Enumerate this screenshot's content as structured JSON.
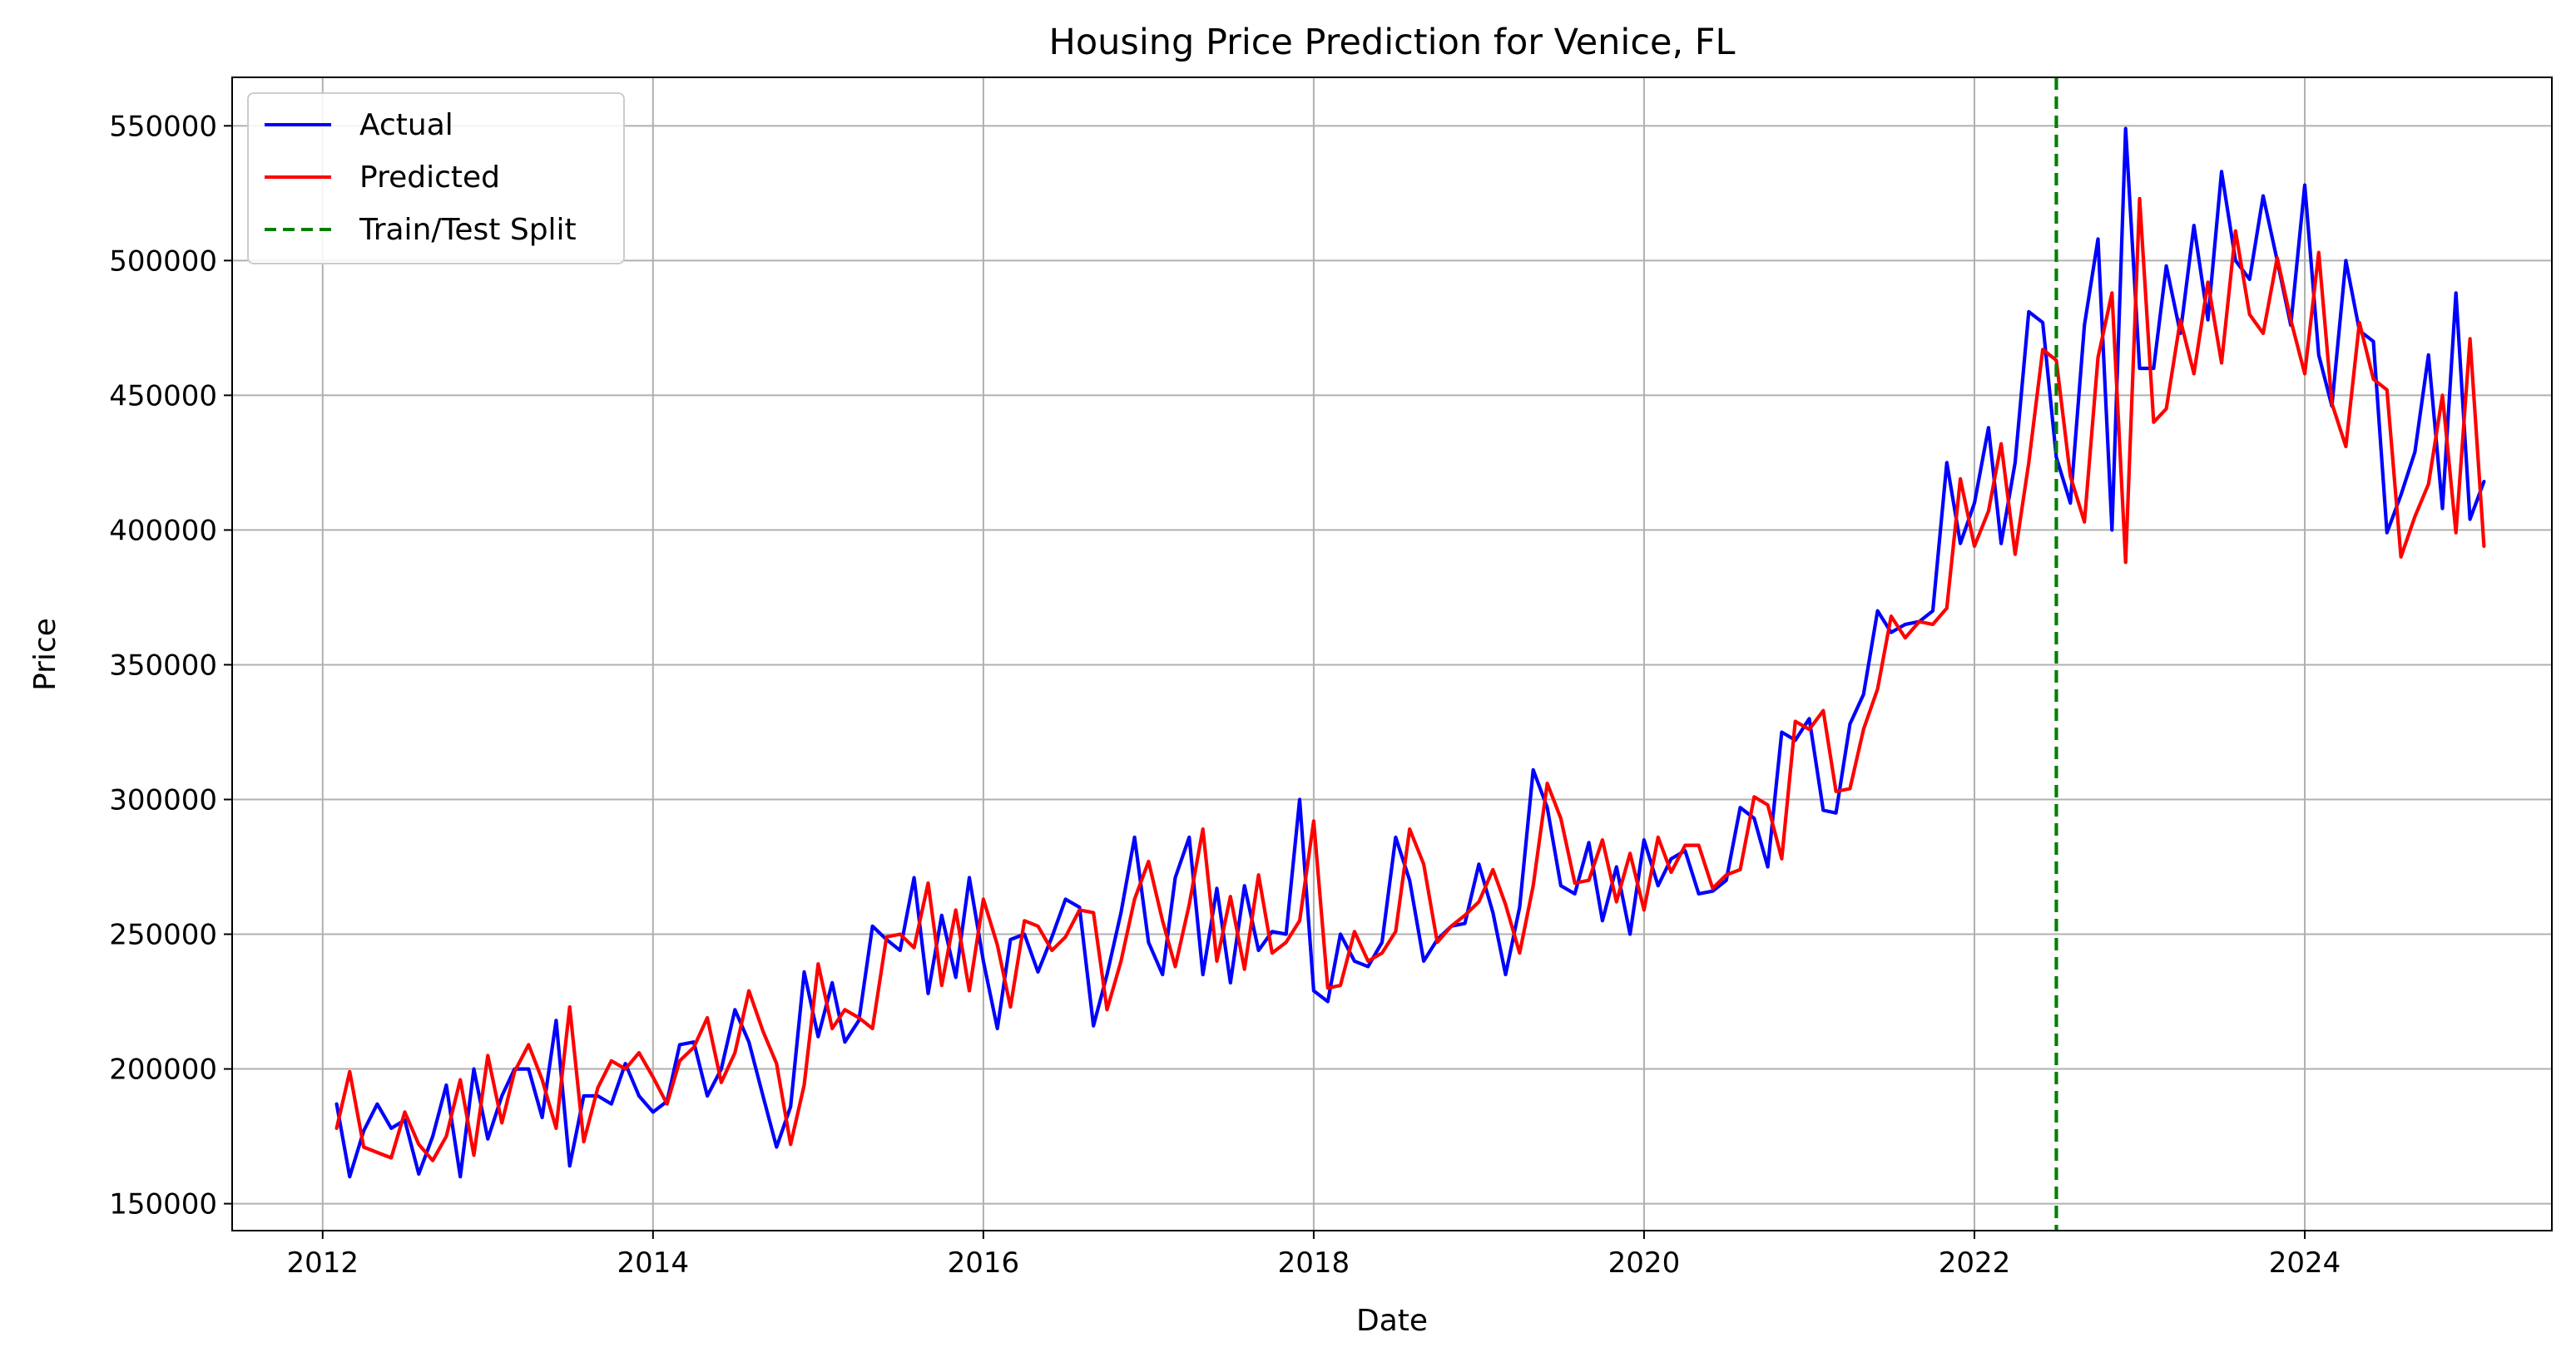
{
  "chart_data": {
    "type": "line",
    "title": "Housing Price Prediction for Venice, FL",
    "xlabel": "Date",
    "ylabel": "Price",
    "x_range": [
      "2011-06-15",
      "2025-07-01"
    ],
    "xticks": [
      "2012",
      "2014",
      "2016",
      "2018",
      "2020",
      "2022",
      "2024"
    ],
    "ylim": [
      140000,
      568000
    ],
    "yticks": [
      150000,
      200000,
      250000,
      300000,
      350000,
      400000,
      450000,
      500000,
      550000
    ],
    "grid": true,
    "legend_position": "top-left",
    "x_start": "2012-02",
    "x_step": "month",
    "split_date": "2022-07-01",
    "split_label": "Train/Test Split",
    "colors": {
      "actual": "#0000ff",
      "predicted": "#ff0000",
      "split": "#008000"
    },
    "series": [
      {
        "name": "Actual",
        "values": [
          187000,
          160000,
          177000,
          187000,
          178000,
          181000,
          161000,
          175000,
          194000,
          160000,
          200000,
          174000,
          190000,
          200000,
          200000,
          182000,
          218000,
          164000,
          190000,
          190000,
          187000,
          202000,
          190000,
          184000,
          188000,
          209000,
          210000,
          190000,
          200000,
          222000,
          210000,
          190000,
          171000,
          186000,
          236000,
          212000,
          232000,
          210000,
          218000,
          253000,
          248000,
          244000,
          271000,
          228000,
          257000,
          234000,
          271000,
          240000,
          215000,
          248000,
          250000,
          236000,
          249000,
          263000,
          260000,
          216000,
          235000,
          258000,
          286000,
          247000,
          235000,
          271000,
          286000,
          235000,
          267000,
          232000,
          268000,
          244000,
          251000,
          250000,
          300000,
          229000,
          225000,
          250000,
          240000,
          238000,
          247000,
          286000,
          270000,
          240000,
          248000,
          253000,
          254000,
          276000,
          258000,
          235000,
          260000,
          311000,
          297000,
          268000,
          265000,
          284000,
          255000,
          275000,
          250000,
          285000,
          268000,
          278000,
          281000,
          265000,
          266000,
          270000,
          297000,
          293000,
          275000,
          325000,
          322000,
          330000,
          296000,
          295000,
          328000,
          339000,
          370000,
          362000,
          365000,
          366000,
          370000,
          425000,
          395000,
          410000,
          438000,
          395000,
          425000,
          481000,
          477000,
          427000,
          410000,
          476000,
          508000,
          400000,
          549000,
          460000,
          460000,
          498000,
          473000,
          513000,
          478000,
          533000,
          500000,
          493000,
          524000,
          500000,
          476000,
          528000,
          465000,
          446000,
          500000,
          474000,
          470000,
          399000,
          413000,
          429000,
          465000,
          408000,
          488000,
          404000,
          418000
        ]
      },
      {
        "name": "Predicted",
        "values": [
          178000,
          199000,
          171000,
          169000,
          167000,
          184000,
          172000,
          166000,
          175000,
          196000,
          168000,
          205000,
          180000,
          199000,
          209000,
          196000,
          178000,
          223000,
          173000,
          193000,
          203000,
          200000,
          206000,
          197000,
          187000,
          203000,
          208000,
          219000,
          195000,
          206000,
          229000,
          214000,
          202000,
          172000,
          194000,
          239000,
          215000,
          222000,
          219000,
          215000,
          249000,
          250000,
          245000,
          269000,
          231000,
          259000,
          229000,
          263000,
          246000,
          223000,
          255000,
          253000,
          244000,
          249000,
          259000,
          258000,
          222000,
          240000,
          263000,
          277000,
          255000,
          238000,
          261000,
          289000,
          240000,
          264000,
          237000,
          272000,
          243000,
          247000,
          255000,
          292000,
          230000,
          231000,
          251000,
          240000,
          243000,
          251000,
          289000,
          276000,
          247000,
          253000,
          257000,
          262000,
          274000,
          261000,
          243000,
          268000,
          306000,
          293000,
          269000,
          270000,
          285000,
          262000,
          280000,
          259000,
          286000,
          273000,
          283000,
          283000,
          267000,
          272000,
          274000,
          301000,
          298000,
          278000,
          329000,
          326000,
          333000,
          303000,
          304000,
          326000,
          341000,
          368000,
          360000,
          366000,
          365000,
          371000,
          419000,
          394000,
          407000,
          432000,
          391000,
          425000,
          467000,
          463000,
          420000,
          403000,
          464000,
          488000,
          388000,
          523000,
          440000,
          445000,
          478000,
          458000,
          492000,
          462000,
          511000,
          480000,
          473000,
          501000,
          478000,
          458000,
          503000,
          447000,
          431000,
          477000,
          456000,
          452000,
          390000,
          405000,
          417000,
          450000,
          399000,
          471000,
          394000
        ]
      }
    ]
  }
}
